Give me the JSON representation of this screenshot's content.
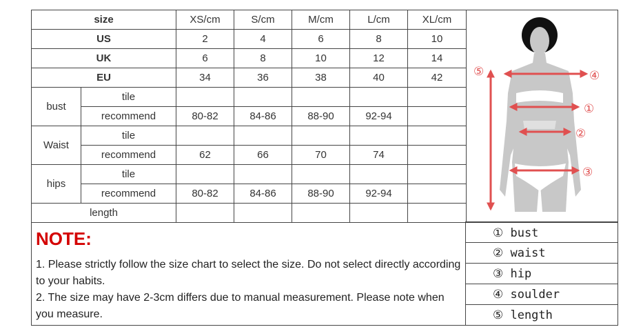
{
  "table": {
    "header": {
      "label": "size",
      "columns": [
        "XS/cm",
        "S/cm",
        "M/cm",
        "L/cm",
        "XL/cm"
      ]
    },
    "regions": [
      {
        "label": "US",
        "values": [
          "2",
          "4",
          "6",
          "8",
          "10"
        ]
      },
      {
        "label": "UK",
        "values": [
          "6",
          "8",
          "10",
          "12",
          "14"
        ]
      },
      {
        "label": "EU",
        "values": [
          "34",
          "36",
          "38",
          "40",
          "42"
        ]
      }
    ],
    "measures": [
      {
        "label": "bust",
        "tile_label": "tile",
        "tile": [
          "",
          "",
          "",
          "",
          ""
        ],
        "rec_label": "recommend",
        "recommend": [
          "80-82",
          "84-86",
          "88-90",
          "92-94",
          ""
        ]
      },
      {
        "label": "Waist",
        "tile_label": "tile",
        "tile": [
          "",
          "",
          "",
          "",
          ""
        ],
        "rec_label": "recommend",
        "recommend": [
          "62",
          "66",
          "70",
          "74",
          ""
        ]
      },
      {
        "label": "hips",
        "tile_label": "tile",
        "tile": [
          "",
          "",
          "",
          "",
          ""
        ],
        "rec_label": "recommend",
        "recommend": [
          "80-82",
          "84-86",
          "88-90",
          "92-94",
          ""
        ]
      }
    ],
    "length": {
      "label": "length",
      "values": [
        "",
        "",
        "",
        "",
        ""
      ]
    }
  },
  "note": {
    "title": "NOTE:",
    "line1": "1. Please strictly follow the size chart  to select the size. Do not select directly according to your habits.",
    "line2": "2. The size may have 2-3cm differs due to manual measurement. Please note when you measure."
  },
  "figure": {
    "markers": [
      "①",
      "②",
      "③",
      "④",
      "⑤"
    ],
    "arrow_color": "#e05050",
    "body_color": "#c8c8c8"
  },
  "legend": [
    "① bust",
    "② waist",
    "③ hip",
    "④ soulder",
    "⑤ length"
  ]
}
